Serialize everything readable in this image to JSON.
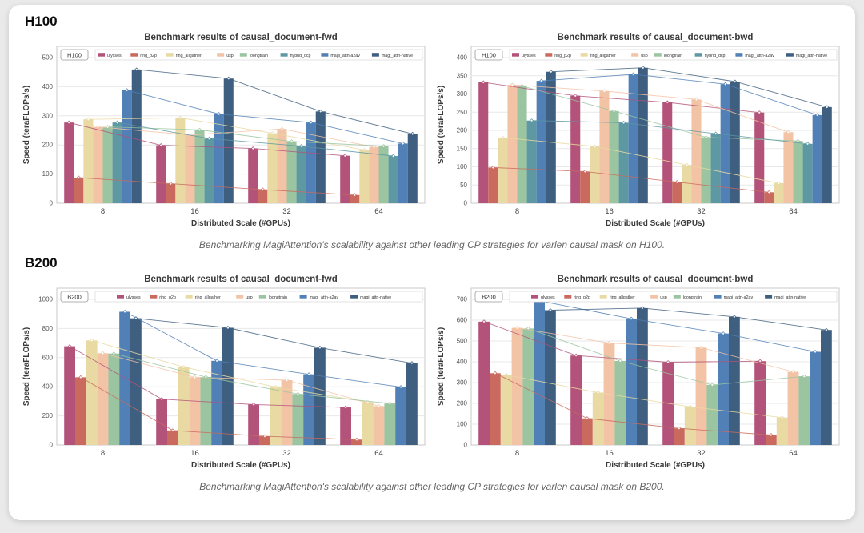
{
  "page": {
    "background": "#eaeaea",
    "card_background": "#ffffff"
  },
  "palette": {
    "ulysses": "#b3537a",
    "ring_p2p": "#ca6a5f",
    "ring_allgather": "#e8daa2",
    "usp": "#f3c3a6",
    "loongtrain": "#9ac5a0",
    "hybrid_dcp": "#5d98a3",
    "magi_attn-a2av": "#5080b5",
    "magi_attn-native": "#3f5f80"
  },
  "sections": [
    {
      "header": "H100",
      "caption": "Benchmarking MagiAttention's scalability against other leading CP strategies for varlen causal mask on H100."
    },
    {
      "header": "B200",
      "caption": "Benchmarking MagiAttention's scalability against other leading CP strategies for varlen causal mask on B200."
    }
  ],
  "chart_data": [
    {
      "type": "bar",
      "tag": "H100",
      "title": "Benchmark results of causal_document-fwd",
      "xlabel": "Distributed Scale (#GPUs)",
      "ylabel": "Speed (teraFLOPs/s)",
      "categories": [
        "8",
        "16",
        "32",
        "64"
      ],
      "ylim": [
        0,
        500
      ],
      "ytick_step": 100,
      "grid": true,
      "legend_position": "top",
      "series": [
        {
          "name": "ulysses",
          "values": [
            277,
            199,
            188,
            163
          ]
        },
        {
          "name": "ring_p2p",
          "values": [
            88,
            67,
            47,
            28
          ]
        },
        {
          "name": "ring_allgather",
          "values": [
            288,
            293,
            240,
            183
          ]
        },
        {
          "name": "usp",
          "values": [
            262,
            234,
            255,
            193
          ]
        },
        {
          "name": "loongtrain",
          "values": [
            262,
            252,
            212,
            196
          ]
        },
        {
          "name": "hybrid_dcp",
          "values": [
            277,
            222,
            196,
            162
          ]
        },
        {
          "name": "magi_attn-a2av",
          "values": [
            388,
            306,
            277,
            205
          ]
        },
        {
          "name": "magi_attn-native",
          "values": [
            459,
            428,
            315,
            238
          ]
        }
      ]
    },
    {
      "type": "bar",
      "tag": "H100",
      "title": "Benchmark results of causal_document-bwd",
      "xlabel": "Distributed Scale (#GPUs)",
      "ylabel": "Speed (teraFLOPs/s)",
      "categories": [
        "8",
        "16",
        "32",
        "64"
      ],
      "ylim": [
        0,
        400
      ],
      "ytick_step": 50,
      "grid": true,
      "legend_position": "top",
      "series": [
        {
          "name": "ulysses",
          "values": [
            332,
            295,
            277,
            249
          ]
        },
        {
          "name": "ring_p2p",
          "values": [
            98,
            87,
            58,
            30
          ]
        },
        {
          "name": "ring_allgather",
          "values": [
            180,
            156,
            105,
            55
          ]
        },
        {
          "name": "usp",
          "values": [
            325,
            308,
            285,
            195
          ]
        },
        {
          "name": "loongtrain",
          "values": [
            322,
            253,
            181,
            171
          ]
        },
        {
          "name": "hybrid_dcp",
          "values": [
            227,
            221,
            191,
            163
          ]
        },
        {
          "name": "magi_attn-a2av",
          "values": [
            336,
            354,
            327,
            242
          ]
        },
        {
          "name": "magi_attn-native",
          "values": [
            361,
            372,
            334,
            264
          ]
        }
      ]
    },
    {
      "type": "bar",
      "tag": "B200",
      "title": "Benchmark results of causal_document-fwd",
      "xlabel": "Distributed Scale (#GPUs)",
      "ylabel": "Speed (teraFLOPs/s)",
      "categories": [
        "8",
        "16",
        "32",
        "64"
      ],
      "ylim": [
        0,
        1000
      ],
      "ytick_step": 200,
      "grid": true,
      "legend_position": "top",
      "series": [
        {
          "name": "ulysses",
          "values": [
            678,
            315,
            278,
            258
          ]
        },
        {
          "name": "ring_p2p",
          "values": [
            465,
            100,
            60,
            37
          ]
        },
        {
          "name": "ring_allgather",
          "values": [
            718,
            535,
            398,
            295
          ]
        },
        {
          "name": "usp",
          "values": [
            630,
            465,
            445,
            267
          ]
        },
        {
          "name": "loongtrain",
          "values": [
            628,
            467,
            350,
            285
          ]
        },
        {
          "name": "magi_attn-a2av",
          "values": [
            915,
            578,
            485,
            398
          ]
        },
        {
          "name": "magi_attn-native",
          "values": [
            870,
            805,
            668,
            562
          ]
        }
      ]
    },
    {
      "type": "bar",
      "tag": "B200",
      "title": "Benchmark results of causal_document-bwd",
      "xlabel": "Distributed Scale (#GPUs)",
      "ylabel": "Speed (teraFLOPs/s)",
      "categories": [
        "8",
        "16",
        "32",
        "64"
      ],
      "ylim": [
        0,
        700
      ],
      "ytick_step": 100,
      "grid": true,
      "legend_position": "top",
      "series": [
        {
          "name": "ulysses",
          "values": [
            593,
            430,
            398,
            403
          ]
        },
        {
          "name": "ring_p2p",
          "values": [
            345,
            128,
            80,
            48
          ]
        },
        {
          "name": "ring_allgather",
          "values": [
            337,
            252,
            184,
            132
          ]
        },
        {
          "name": "usp",
          "values": [
            563,
            490,
            468,
            352
          ]
        },
        {
          "name": "loongtrain",
          "values": [
            560,
            404,
            289,
            330
          ]
        },
        {
          "name": "magi_attn-a2av",
          "values": [
            693,
            607,
            536,
            448
          ]
        },
        {
          "name": "magi_attn-native",
          "values": [
            648,
            658,
            616,
            553
          ]
        }
      ]
    }
  ]
}
